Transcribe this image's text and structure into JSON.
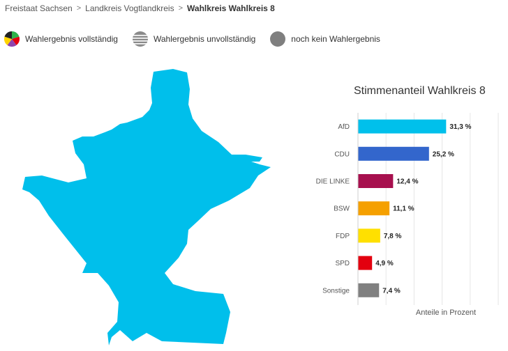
{
  "breadcrumb": {
    "items": [
      "Freistaat Sachsen",
      "Landkreis Vogtlandkreis",
      "Wahlkreis Wahlkreis 8"
    ],
    "separator": ">"
  },
  "legend": {
    "complete": "Wahlergebnis vollständig",
    "incomplete": "Wahlergebnis unvollständig",
    "none": "noch kein Wahlergebnis"
  },
  "map": {
    "fill_color": "#00bfeb"
  },
  "chart_data": {
    "type": "bar",
    "orientation": "horizontal",
    "title": "Stimmenanteil Wahlkreis 8",
    "xlabel": "Anteile in Prozent",
    "ylabel": "",
    "xlim": [
      0,
      50
    ],
    "grid": true,
    "categories": [
      "AfD",
      "CDU",
      "DIE LINKE",
      "BSW",
      "FDP",
      "SPD",
      "Sonstige"
    ],
    "values": [
      31.3,
      25.2,
      12.4,
      11.1,
      7.8,
      4.9,
      7.4
    ],
    "value_labels": [
      "31,3 %",
      "25,2 %",
      "12,4 %",
      "11,1 %",
      "7,8 %",
      "4,9 %",
      "7,4 %"
    ],
    "colors": [
      "#00c0eb",
      "#3366cc",
      "#a7104e",
      "#f5a000",
      "#ffe000",
      "#e3000f",
      "#808080"
    ]
  }
}
